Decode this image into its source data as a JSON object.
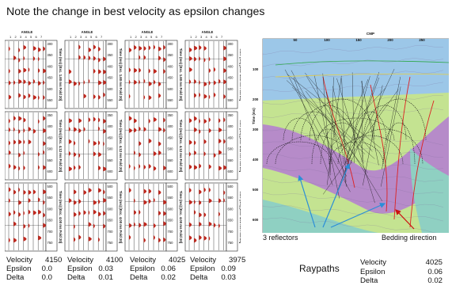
{
  "slide": {
    "title": "Note the change in best velocity as epsilon changes"
  },
  "gathers": {
    "angle_label": "ANGLE",
    "angle_ticks": [
      "1",
      "2",
      "3",
      "4",
      "5",
      "6",
      "7"
    ],
    "panels": [
      {
        "vel_label": "Velocity",
        "vel": "4150",
        "eps_label": "Epsilon",
        "eps": "0.0",
        "delta_label": "Delta",
        "delta": "0.0"
      },
      {
        "vel_label": "Velocity",
        "vel": "4100",
        "eps_label": "Epsilon",
        "eps": "0.03",
        "delta_label": "Delta",
        "delta": "0.01"
      },
      {
        "vel_label": "Velocity",
        "vel": "4025",
        "eps_label": "Epsilon",
        "eps": "0.06",
        "delta_label": "Delta",
        "delta": "0.02"
      },
      {
        "vel_label": "Velocity",
        "vel": "3975",
        "eps_label": "Epsilon",
        "eps": "0.09",
        "delta_label": "Delta",
        "delta": "0.03"
      }
    ],
    "time_ticks": [
      [
        "300",
        "350",
        "400",
        "450",
        "500",
        "550"
      ],
      [
        "350",
        "400",
        "450",
        "500",
        "550",
        "600"
      ],
      [
        "500",
        "550",
        "600",
        "650",
        "700",
        "750"
      ]
    ],
    "side_labels": [
      "Time (ms) [Exc. 1.80 ms Fold 20]",
      "Time (ms) [Exc. 4.12 ms Fold 20]",
      "Time (ms) [Exc. 4.00 ms Fold 20]"
    ]
  },
  "raypaths": {
    "cmp_label": "CMP",
    "cmp_ticks": [
      "50",
      "100",
      "150",
      "200",
      "250"
    ],
    "time_axis_label": "Time (ms)",
    "time_ticks": [
      "100",
      "200",
      "300",
      "400",
      "500",
      "600"
    ],
    "reflectors_label": "3 reflectors",
    "bedding_label": "Bedding direction",
    "caption": "Raypaths",
    "params": {
      "vel_label": "Velocity",
      "vel": "4025",
      "eps_label": "Epsilon",
      "eps": "0.06",
      "delta_label": "Delta",
      "delta": "0.02"
    }
  },
  "colors": {
    "wiggle_fill": "#c0281e",
    "arrow_blue": "#2a8ed8",
    "arrow_red": "#cc1111",
    "layer_sky": "#9cc7e8",
    "layer_green": "#c4e391",
    "layer_purple": "#b68bc9",
    "layer_teal": "#8fd0c2"
  }
}
